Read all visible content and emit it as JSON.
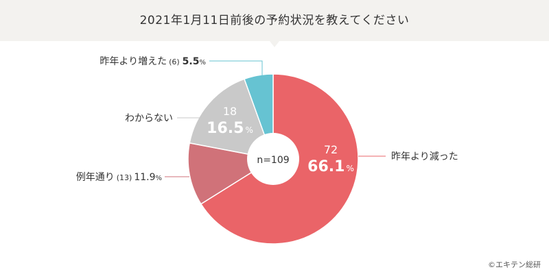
{
  "title": "2021年1月11日前後の予約状況を教えてください",
  "credit": "©エキテン総研",
  "chart_data": {
    "type": "pie",
    "style": "donut",
    "center_label": "n=109",
    "slices": [
      {
        "label": "昨年より減った",
        "count": "72",
        "percent": "66.1",
        "value": 66.1,
        "color": "#ea6468"
      },
      {
        "label": "例年通り",
        "count": "(13)",
        "percent": "11.9",
        "value": 11.9,
        "color": "#d07279"
      },
      {
        "label": "わからない",
        "count": "18",
        "percent": "16.5",
        "value": 16.5,
        "color": "#c9c9c9"
      },
      {
        "label": "昨年より増えた",
        "count": "(6)",
        "percent": "5.5",
        "value": 5.5,
        "color": "#66c3d2"
      }
    ],
    "pct_unit": "%"
  }
}
